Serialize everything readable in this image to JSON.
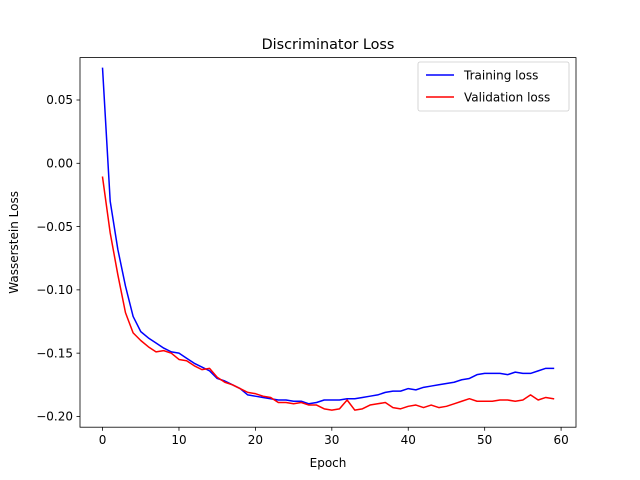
{
  "chart_data": {
    "type": "line",
    "title": "Discriminator Loss",
    "xlabel": "Epoch",
    "ylabel": "Wasserstein Loss",
    "xlim": [
      -2.95,
      61.95
    ],
    "ylim": [
      -0.2085,
      0.0835
    ],
    "xticks": [
      0,
      10,
      20,
      30,
      40,
      50,
      60
    ],
    "xtick_labels": [
      "0",
      "10",
      "20",
      "30",
      "40",
      "50",
      "60"
    ],
    "yticks": [
      0.05,
      0.0,
      -0.05,
      -0.1,
      -0.15,
      -0.2
    ],
    "ytick_labels": [
      "0.05",
      "0.00",
      "−0.05",
      "−0.10",
      "−0.15",
      "−0.20"
    ],
    "grid": false,
    "legend_position": "top-right",
    "x": [
      0,
      1,
      2,
      3,
      4,
      5,
      6,
      7,
      8,
      9,
      10,
      11,
      12,
      13,
      14,
      15,
      16,
      17,
      18,
      19,
      20,
      21,
      22,
      23,
      24,
      25,
      26,
      27,
      28,
      29,
      30,
      31,
      32,
      33,
      34,
      35,
      36,
      37,
      38,
      39,
      40,
      41,
      42,
      43,
      44,
      45,
      46,
      47,
      48,
      49,
      50,
      51,
      52,
      53,
      54,
      55,
      56,
      57,
      58,
      59
    ],
    "series": [
      {
        "name": "Training loss",
        "color": "#0000ff",
        "values": [
          0.075,
          -0.03,
          -0.068,
          -0.097,
          -0.121,
          -0.133,
          -0.138,
          -0.142,
          -0.146,
          -0.149,
          -0.15,
          -0.154,
          -0.158,
          -0.161,
          -0.164,
          -0.17,
          -0.172,
          -0.175,
          -0.178,
          -0.183,
          -0.184,
          -0.185,
          -0.186,
          -0.187,
          -0.187,
          -0.188,
          -0.188,
          -0.19,
          -0.189,
          -0.187,
          -0.187,
          -0.187,
          -0.186,
          -0.186,
          -0.185,
          -0.184,
          -0.183,
          -0.181,
          -0.18,
          -0.18,
          -0.178,
          -0.179,
          -0.177,
          -0.176,
          -0.175,
          -0.174,
          -0.173,
          -0.171,
          -0.17,
          -0.167,
          -0.166,
          -0.166,
          -0.166,
          -0.167,
          -0.165,
          -0.166,
          -0.166,
          -0.164,
          -0.162,
          -0.162
        ]
      },
      {
        "name": "Validation loss",
        "color": "#ff0000",
        "values": [
          -0.011,
          -0.055,
          -0.088,
          -0.118,
          -0.134,
          -0.14,
          -0.145,
          -0.149,
          -0.148,
          -0.15,
          -0.155,
          -0.156,
          -0.16,
          -0.163,
          -0.162,
          -0.169,
          -0.173,
          -0.175,
          -0.178,
          -0.181,
          -0.182,
          -0.184,
          -0.185,
          -0.189,
          -0.189,
          -0.19,
          -0.189,
          -0.191,
          -0.191,
          -0.194,
          -0.195,
          -0.194,
          -0.187,
          -0.195,
          -0.194,
          -0.191,
          -0.19,
          -0.189,
          -0.193,
          -0.194,
          -0.192,
          -0.191,
          -0.193,
          -0.191,
          -0.193,
          -0.192,
          -0.19,
          -0.188,
          -0.186,
          -0.188,
          -0.188,
          -0.188,
          -0.187,
          -0.187,
          -0.188,
          -0.187,
          -0.183,
          -0.187,
          -0.185,
          -0.186
        ]
      }
    ]
  }
}
